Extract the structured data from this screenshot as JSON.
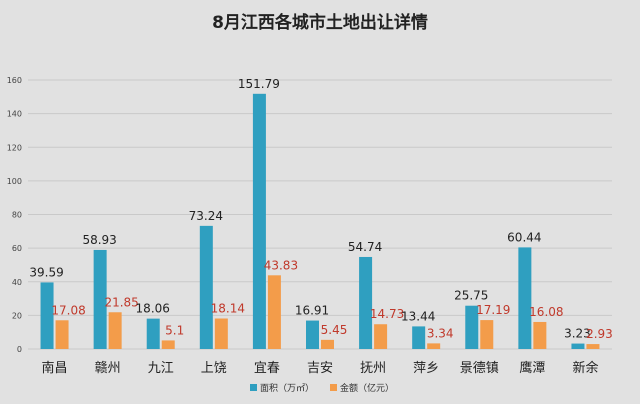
{
  "colors": {
    "background": "#e1e1e1",
    "grid": "#c9c9c9",
    "area_series": "#2f9fc0",
    "amount_series": "#f39c4a",
    "area_label": "#222222",
    "amount_label": "#c0392b",
    "text": "#222222"
  },
  "chart_data": {
    "type": "bar",
    "title": "8月江西各城市土地出让详情",
    "xlabel": "",
    "ylabel": "",
    "ylim": [
      0,
      160
    ],
    "yticks": [
      "0",
      "20",
      "40",
      "60",
      "80",
      "100",
      "120",
      "140",
      "160"
    ],
    "grid": true,
    "legend_position": "bottom-center",
    "categories": [
      "南昌",
      "赣州",
      "九江",
      "上饶",
      "宜春",
      "吉安",
      "抚州",
      "萍乡",
      "景德镇",
      "鹰潭",
      "新余"
    ],
    "series": [
      {
        "name": "面积（万㎡）",
        "values": [
          39.59,
          58.93,
          18.06,
          73.24,
          151.79,
          16.91,
          54.74,
          13.44,
          25.75,
          60.44,
          3.23
        ],
        "labels": [
          "39.59",
          "58.93",
          "18.06",
          "73.24",
          "151.79",
          "16.91",
          "54.74",
          "13.44",
          "25.75",
          "60.44",
          "3.23"
        ]
      },
      {
        "name": "金额（亿元）",
        "values": [
          17.08,
          21.85,
          5.1,
          18.14,
          43.83,
          5.45,
          14.73,
          3.34,
          17.19,
          16.08,
          2.93
        ],
        "labels": [
          "17.08",
          "21.85",
          "5.1",
          "18.14",
          "43.83",
          "5.45",
          "14.73",
          "3.34",
          "17.19",
          "16.08",
          "2.93"
        ]
      }
    ]
  }
}
